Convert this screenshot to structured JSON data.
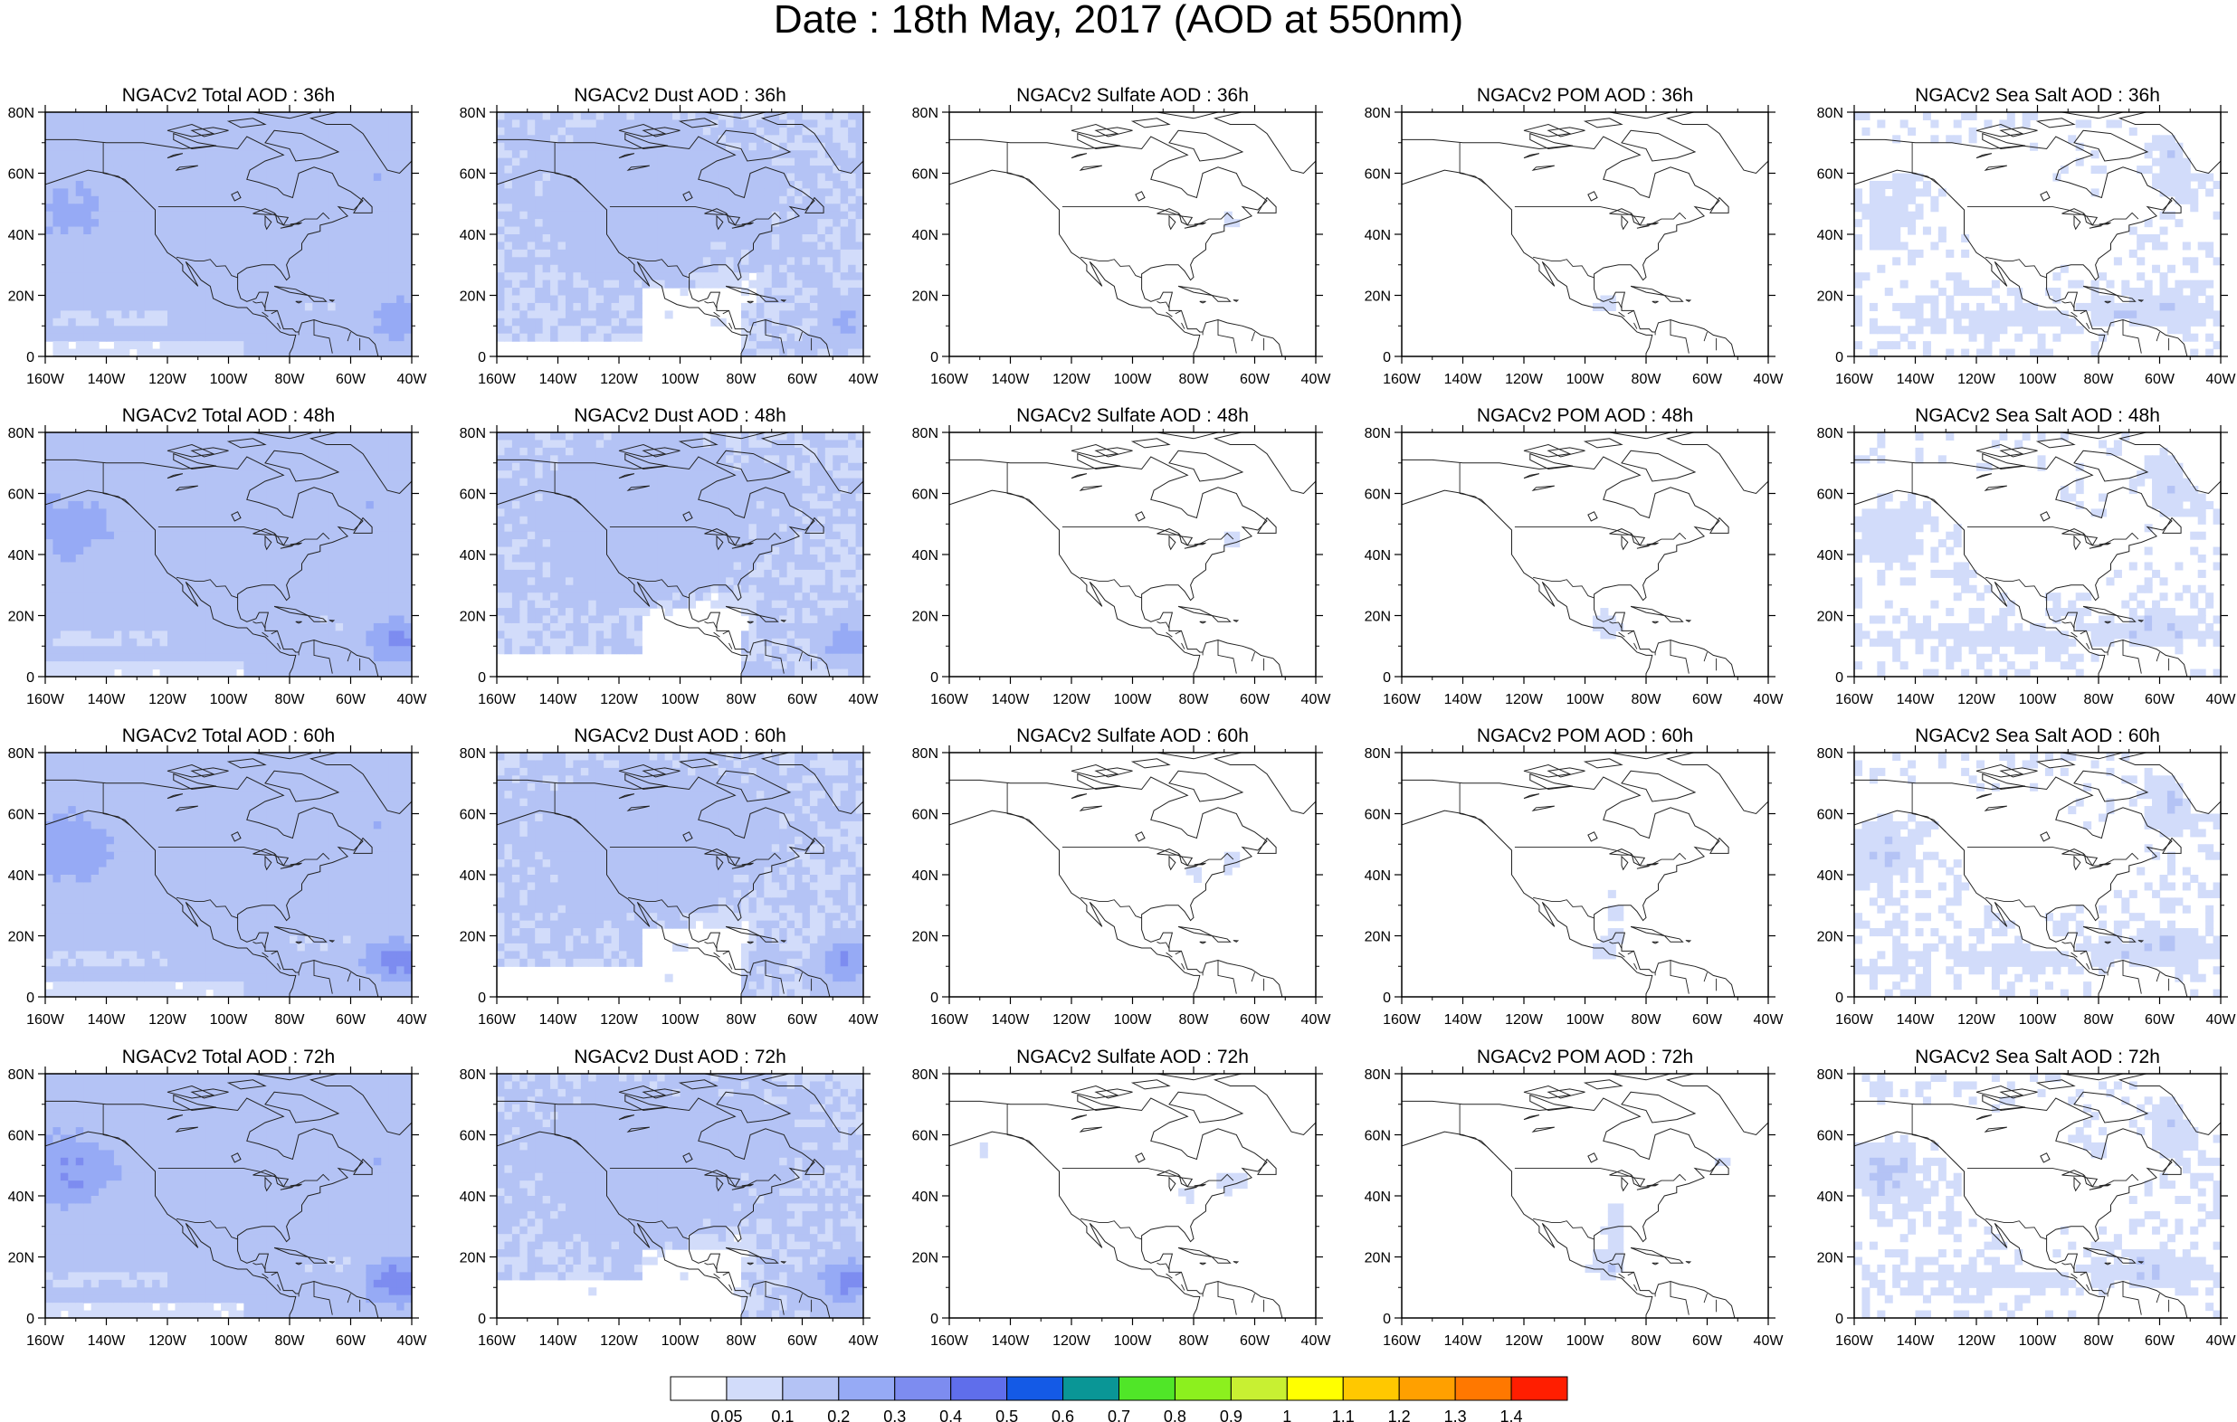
{
  "title": "Date : 18th May, 2017 (AOD at 550nm)",
  "axes": {
    "x_ticks": [
      "160W",
      "140W",
      "120W",
      "100W",
      "80W",
      "60W",
      "40W"
    ],
    "y_ticks": [
      "0",
      "20N",
      "40N",
      "60N",
      "80N"
    ]
  },
  "columns": [
    {
      "species": "total",
      "titles": [
        "NGACv2 Total AOD : 36h",
        "NGACv2 Total AOD : 48h",
        "NGACv2 Total AOD : 60h",
        "NGACv2 Total AOD : 72h"
      ]
    },
    {
      "species": "dust",
      "titles": [
        "NGACv2 Dust AOD : 36h",
        "NGACv2 Dust AOD : 48h",
        "NGACv2 Dust AOD : 60h",
        "NGACv2 Dust AOD : 72h"
      ]
    },
    {
      "species": "sulfate",
      "titles": [
        "NGACv2 Sulfate AOD : 36h",
        "NGACv2 Sulfate AOD : 48h",
        "NGACv2 Sulfate AOD : 60h",
        "NGACv2 Sulfate AOD : 72h"
      ]
    },
    {
      "species": "pom",
      "titles": [
        "NGACv2 POM AOD : 36h",
        "NGACv2 POM AOD : 48h",
        "NGACv2 POM AOD : 60h",
        "NGACv2 POM AOD : 72h"
      ]
    },
    {
      "species": "seasalt",
      "titles": [
        "NGACv2 Sea Salt AOD : 36h",
        "NGACv2 Sea Salt AOD : 48h",
        "NGACv2 Sea Salt AOD : 60h",
        "NGACv2 Sea Salt  AOD : 72h"
      ]
    }
  ],
  "colorbar": {
    "labels": [
      "0.05",
      "0.1",
      "0.2",
      "0.3",
      "0.4",
      "0.5",
      "0.6",
      "0.7",
      "0.8",
      "0.9",
      "1",
      "1.1",
      "1.2",
      "1.3",
      "1.4"
    ],
    "colors": [
      "#ffffff",
      "#d2dcfa",
      "#b4c3f5",
      "#96aaf5",
      "#7d8cf0",
      "#5f6eeb",
      "#145ae6",
      "#0a9696",
      "#50e628",
      "#8cf01e",
      "#c8f032",
      "#ffff00",
      "#ffc800",
      "#ffa000",
      "#ff7800",
      "#ff1e00"
    ]
  }
}
